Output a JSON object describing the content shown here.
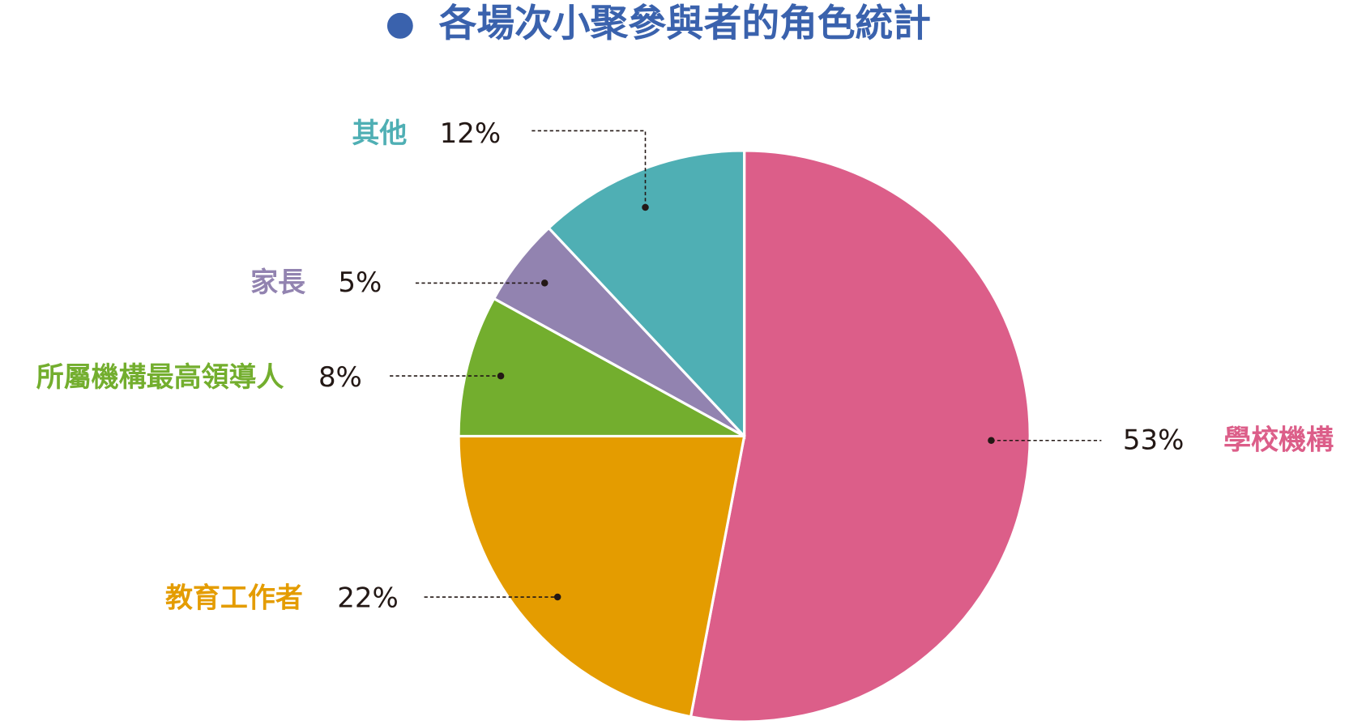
{
  "chart_data": {
    "type": "pie",
    "title": "各場次小聚參與者的角色統計",
    "categories": [
      "學校機構",
      "教育工作者",
      "所屬機構最高領導人",
      "家長",
      "其他"
    ],
    "values": [
      53,
      22,
      8,
      5,
      12
    ],
    "value_labels": [
      "53%",
      "22%",
      "8%",
      "5%",
      "12%"
    ],
    "colors": [
      "#dc5e89",
      "#e49c00",
      "#73ae2e",
      "#9283b0",
      "#4fafb4"
    ]
  }
}
